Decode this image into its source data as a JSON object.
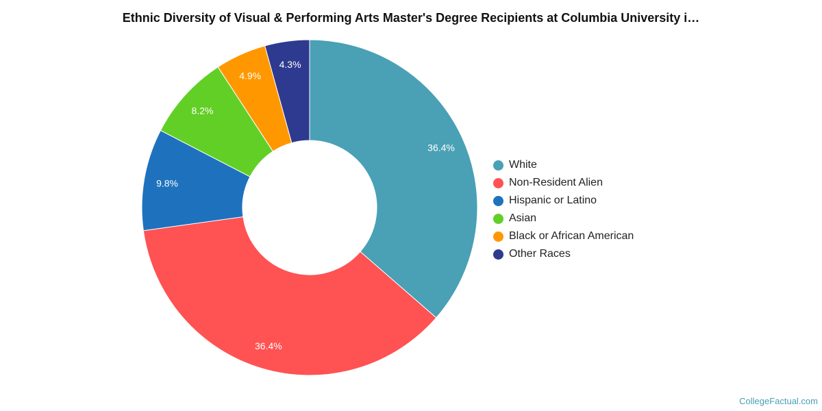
{
  "chart_data": {
    "type": "pie",
    "title": "Ethnic Diversity of Visual & Performing Arts Master's Degree Recipients at Columbia University i…",
    "legend_position": "right",
    "categories": [
      "White",
      "Non-Resident Alien",
      "Hispanic or Latino",
      "Asian",
      "Black or African American",
      "Other Races"
    ],
    "values": [
      36.4,
      36.4,
      9.8,
      8.2,
      4.9,
      4.3
    ],
    "value_labels": [
      "36.4%",
      "36.4%",
      "9.8%",
      "8.2%",
      "4.9%",
      "4.3%"
    ],
    "colors": [
      "#4aa0b5",
      "#ff5252",
      "#1e72bd",
      "#62cf26",
      "#ff9800",
      "#2e3a8f"
    ],
    "start": "top, clockwise",
    "hole": "donut"
  },
  "credit": "CollegeFactual.com"
}
